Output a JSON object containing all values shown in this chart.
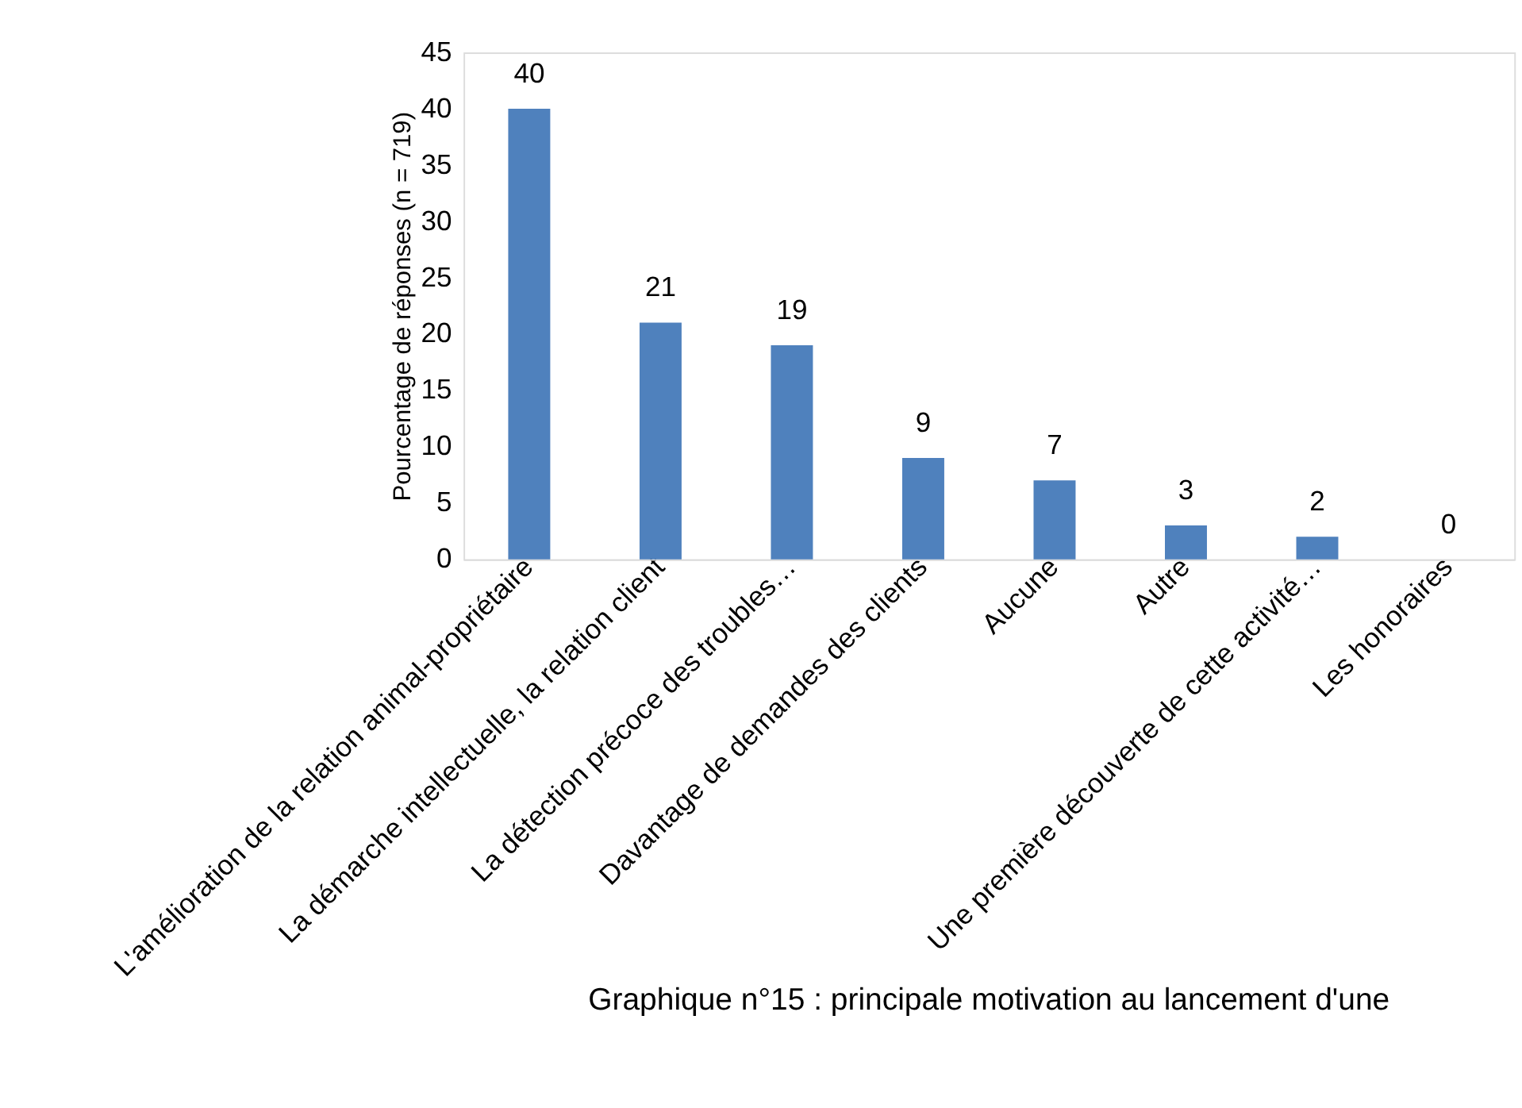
{
  "chart_data": {
    "type": "bar",
    "title": "Graphique n°15 : principale motivation au lancement d'une",
    "ylabel": "Pourcentage de réponses (n = 719)",
    "categories": [
      "L'amélioration de la relation animal-propriétaire",
      "La démarche intellectuelle, la relation client",
      "La détection précoce des troubles…",
      "Davantage de demandes des clients",
      "Aucune",
      "Autre",
      "Une première découverte de cette activité…",
      "Les honoraires"
    ],
    "values": [
      40,
      21,
      19,
      9,
      7,
      3,
      2,
      0
    ],
    "color": "#4f81bd",
    "ylim": [
      0,
      45
    ],
    "yticks": [
      0,
      5,
      10,
      15,
      20,
      25,
      30,
      35,
      40,
      45
    ],
    "data_labels": true,
    "grid": false
  }
}
